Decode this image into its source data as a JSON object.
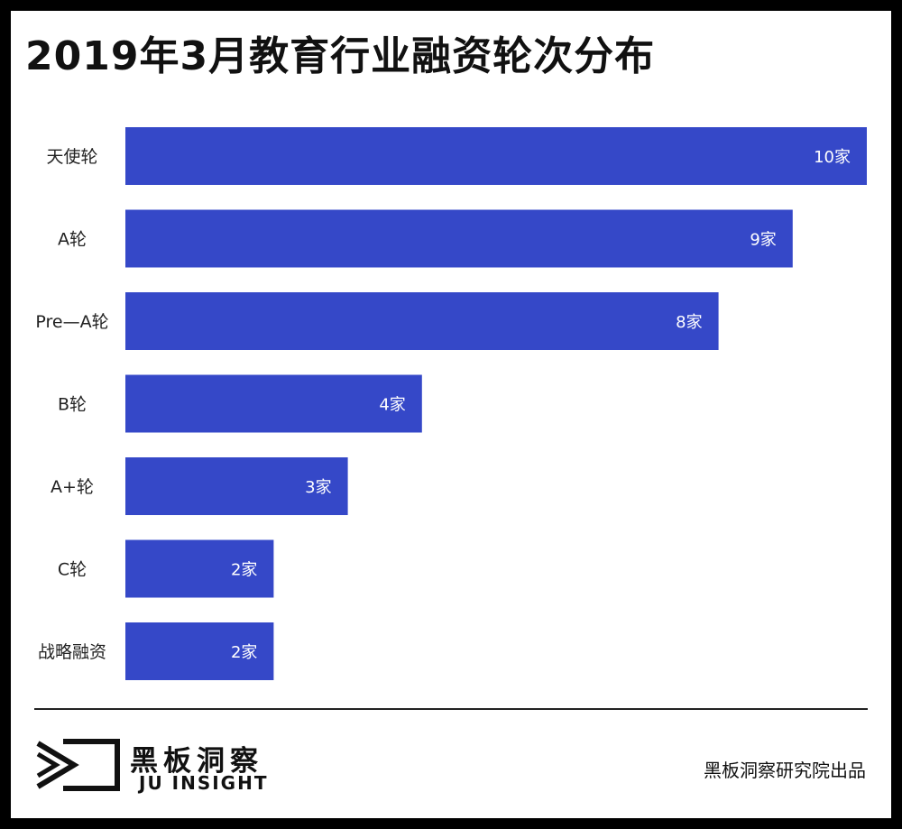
{
  "header": {
    "title": "2019年3月教育行业融资轮次分布"
  },
  "chart_data": {
    "type": "bar",
    "orientation": "horizontal",
    "categories": [
      "天使轮",
      "A轮",
      "Pre—A轮",
      "B轮",
      "A+轮",
      "C轮",
      "战略融资"
    ],
    "values": [
      10,
      9,
      8,
      4,
      3,
      2,
      2
    ],
    "data_labels": [
      "10家",
      "9家",
      "8家",
      "4家",
      "3家",
      "2家",
      "2家"
    ],
    "title": "2019年3月教育行业融资轮次分布",
    "xlim": [
      0,
      10
    ],
    "grid": false,
    "bar_color": "#3548c8"
  },
  "footer": {
    "brand_cn": "黑板洞察",
    "brand_en": "JU INSIGHT",
    "credit": "黑板洞察研究院出品"
  },
  "colors": {
    "bar": "#3548c8",
    "frame": "#000000",
    "text": "#111111"
  },
  "icons": {
    "logo": "eye-play-logo-icon"
  }
}
